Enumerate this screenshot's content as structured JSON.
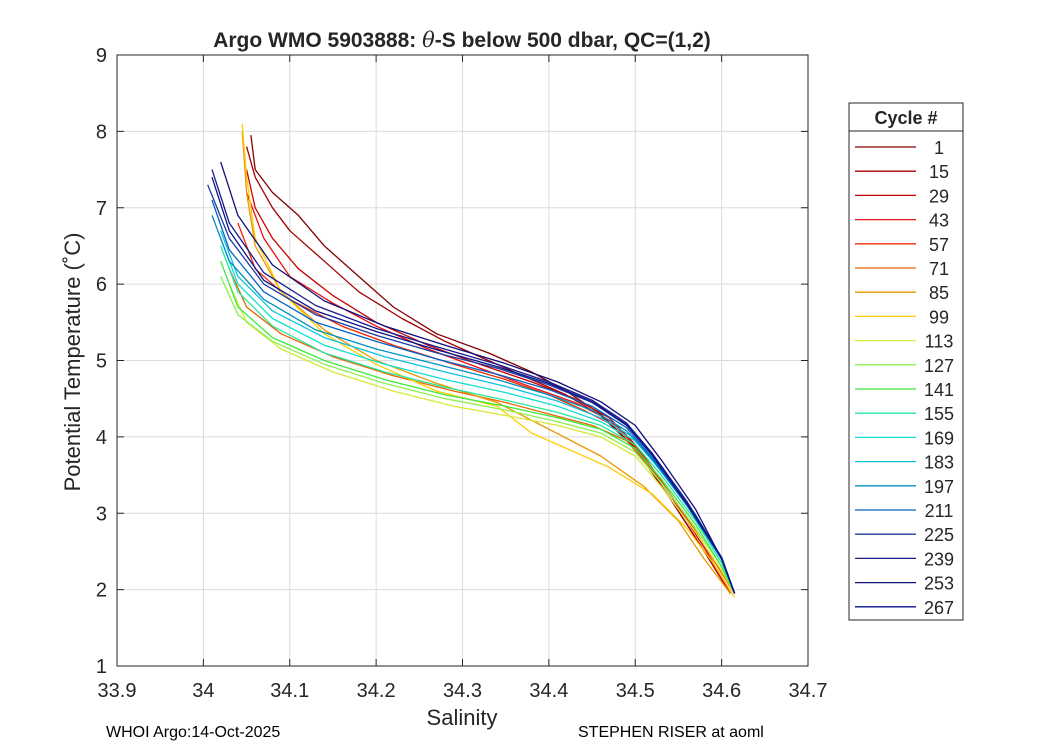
{
  "chart_data": {
    "type": "line",
    "title_prefix": "Argo WMO 5903888: ",
    "title_theta": "θ",
    "title_suffix": "-S below 500 dbar,  QC=(1,2)",
    "xlabel": "Salinity",
    "ylabel": "Potential Temperature (˚C)",
    "xlim": [
      33.9,
      34.7
    ],
    "ylim": [
      1,
      9
    ],
    "xticks": [
      "33.9",
      "34",
      "34.1",
      "34.2",
      "34.3",
      "34.4",
      "34.5",
      "34.6",
      "34.7"
    ],
    "yticks": [
      "1",
      "2",
      "3",
      "4",
      "5",
      "6",
      "7",
      "8",
      "9"
    ],
    "grid": true,
    "legend": {
      "title": "Cycle #",
      "placement": "outside-right",
      "entries": [
        {
          "label": "1",
          "color": "#800000"
        },
        {
          "label": "15",
          "color": "#a20000"
        },
        {
          "label": "29",
          "color": "#c80000"
        },
        {
          "label": "43",
          "color": "#e81010"
        },
        {
          "label": "57",
          "color": "#f02800"
        },
        {
          "label": "71",
          "color": "#e86400"
        },
        {
          "label": "85",
          "color": "#e89600"
        },
        {
          "label": "99",
          "color": "#ffcc00"
        },
        {
          "label": "113",
          "color": "#d8e838"
        },
        {
          "label": "127",
          "color": "#8cf050"
        },
        {
          "label": "141",
          "color": "#40e840"
        },
        {
          "label": "155",
          "color": "#20e8a0"
        },
        {
          "label": "169",
          "color": "#10e0d0"
        },
        {
          "label": "183",
          "color": "#10c0e0"
        },
        {
          "label": "197",
          "color": "#0090c0"
        },
        {
          "label": "211",
          "color": "#0064c8"
        },
        {
          "label": "225",
          "color": "#1e3ca0"
        },
        {
          "label": "239",
          "color": "#1a1a8c"
        },
        {
          "label": "253",
          "color": "#101078"
        },
        {
          "label": "267",
          "color": "#0a1488"
        }
      ]
    },
    "series": [
      {
        "name": "1",
        "color": "#800000",
        "x": [
          34.055,
          34.06,
          34.08,
          34.11,
          34.14,
          34.18,
          34.22,
          34.27,
          34.33,
          34.38,
          34.42,
          34.46,
          34.5,
          34.54,
          34.58,
          34.61
        ],
        "y": [
          7.95,
          7.5,
          7.2,
          6.9,
          6.5,
          6.1,
          5.7,
          5.35,
          5.1,
          4.85,
          4.6,
          4.3,
          3.85,
          3.2,
          2.5,
          1.95
        ]
      },
      {
        "name": "15",
        "color": "#a20000",
        "x": [
          34.05,
          34.06,
          34.08,
          34.1,
          34.14,
          34.18,
          34.23,
          34.28,
          34.33,
          34.38,
          34.42,
          34.46,
          34.5,
          34.54,
          34.58,
          34.61
        ],
        "y": [
          7.8,
          7.4,
          7.0,
          6.7,
          6.3,
          5.9,
          5.55,
          5.25,
          5.0,
          4.75,
          4.55,
          4.28,
          3.85,
          3.2,
          2.5,
          1.95
        ]
      },
      {
        "name": "29",
        "color": "#c80000",
        "x": [
          34.05,
          34.06,
          34.08,
          34.11,
          34.15,
          34.2,
          34.26,
          34.32,
          34.38,
          34.43,
          34.47,
          34.5,
          34.54,
          34.58,
          34.61
        ],
        "y": [
          7.5,
          7.0,
          6.6,
          6.2,
          5.85,
          5.5,
          5.2,
          4.95,
          4.72,
          4.5,
          4.25,
          3.9,
          3.25,
          2.55,
          1.95
        ]
      },
      {
        "name": "43",
        "color": "#e81010",
        "x": [
          34.05,
          34.07,
          34.1,
          34.15,
          34.2,
          34.26,
          34.32,
          34.38,
          34.43,
          34.47,
          34.5,
          34.54,
          34.58,
          34.61
        ],
        "y": [
          7.2,
          6.6,
          6.1,
          5.75,
          5.45,
          5.15,
          4.9,
          4.65,
          4.45,
          4.22,
          3.88,
          3.25,
          2.55,
          1.95
        ]
      },
      {
        "name": "57",
        "color": "#f02800",
        "x": [
          34.04,
          34.06,
          34.1,
          34.16,
          34.22,
          34.29,
          34.35,
          34.4,
          34.44,
          34.48,
          34.51,
          34.55,
          34.59,
          34.615
        ],
        "y": [
          6.8,
          6.2,
          5.8,
          5.45,
          5.2,
          4.95,
          4.75,
          4.55,
          4.35,
          4.12,
          3.75,
          3.1,
          2.4,
          1.95
        ]
      },
      {
        "name": "71",
        "color": "#e86400",
        "x": [
          34.03,
          34.05,
          34.09,
          34.15,
          34.22,
          34.29,
          34.35,
          34.4,
          34.45,
          34.49,
          34.52,
          34.56,
          34.59,
          34.615
        ],
        "y": [
          6.2,
          5.7,
          5.35,
          5.05,
          4.8,
          4.6,
          4.45,
          4.3,
          4.15,
          3.95,
          3.55,
          2.95,
          2.4,
          1.95
        ]
      },
      {
        "name": "85",
        "color": "#e89600",
        "x": [
          34.045,
          34.05,
          34.06,
          34.09,
          34.14,
          34.2,
          34.27,
          34.34,
          34.4,
          34.46,
          34.51,
          34.55,
          34.58,
          34.61
        ],
        "y": [
          8.0,
          7.2,
          6.5,
          5.9,
          5.4,
          5.0,
          4.7,
          4.45,
          4.1,
          3.75,
          3.35,
          2.9,
          2.4,
          1.95
        ]
      },
      {
        "name": "99",
        "color": "#ffcc00",
        "x": [
          34.045,
          34.05,
          34.06,
          34.09,
          34.14,
          34.2,
          34.27,
          34.34,
          34.38,
          34.42,
          34.47,
          34.52,
          34.56,
          34.59,
          34.615
        ],
        "y": [
          8.1,
          7.4,
          6.6,
          5.9,
          5.35,
          4.95,
          4.6,
          4.4,
          4.05,
          3.85,
          3.6,
          3.25,
          2.8,
          2.35,
          1.9
        ]
      },
      {
        "name": "113",
        "color": "#d8e838",
        "x": [
          34.03,
          34.05,
          34.09,
          34.15,
          34.22,
          34.29,
          34.35,
          34.41,
          34.46,
          34.5,
          34.53,
          34.57,
          34.6,
          34.615
        ],
        "y": [
          6.0,
          5.5,
          5.15,
          4.85,
          4.6,
          4.4,
          4.28,
          4.15,
          4.0,
          3.75,
          3.35,
          2.75,
          2.25,
          1.95
        ]
      },
      {
        "name": "127",
        "color": "#8cf050",
        "x": [
          34.02,
          34.04,
          34.08,
          34.14,
          34.21,
          34.28,
          34.35,
          34.41,
          34.46,
          34.5,
          34.53,
          34.57,
          34.6,
          34.615
        ],
        "y": [
          6.1,
          5.6,
          5.25,
          4.95,
          4.7,
          4.5,
          4.35,
          4.2,
          4.05,
          3.8,
          3.4,
          2.8,
          2.3,
          1.95
        ]
      },
      {
        "name": "141",
        "color": "#40e840",
        "x": [
          34.02,
          34.04,
          34.08,
          34.14,
          34.21,
          34.28,
          34.35,
          34.41,
          34.46,
          34.5,
          34.53,
          34.57,
          34.6,
          34.615
        ],
        "y": [
          6.3,
          5.7,
          5.3,
          5.0,
          4.75,
          4.55,
          4.4,
          4.25,
          4.1,
          3.85,
          3.45,
          2.85,
          2.3,
          1.95
        ]
      },
      {
        "name": "155",
        "color": "#20e8a0",
        "x": [
          34.02,
          34.04,
          34.08,
          34.14,
          34.21,
          34.28,
          34.35,
          34.41,
          34.46,
          34.5,
          34.53,
          34.57,
          34.6,
          34.615
        ],
        "y": [
          6.5,
          5.9,
          5.45,
          5.1,
          4.85,
          4.65,
          4.48,
          4.32,
          4.15,
          3.9,
          3.5,
          2.9,
          2.35,
          1.95
        ]
      },
      {
        "name": "169",
        "color": "#10e0d0",
        "x": [
          34.02,
          34.04,
          34.08,
          34.14,
          34.21,
          34.28,
          34.35,
          34.41,
          34.46,
          34.5,
          34.53,
          34.57,
          34.6,
          34.615
        ],
        "y": [
          6.6,
          6.0,
          5.55,
          5.2,
          4.95,
          4.75,
          4.58,
          4.4,
          4.2,
          3.95,
          3.55,
          2.95,
          2.4,
          1.95
        ]
      },
      {
        "name": "183",
        "color": "#10c0e0",
        "x": [
          34.02,
          34.04,
          34.08,
          34.14,
          34.21,
          34.28,
          34.35,
          34.41,
          34.46,
          34.5,
          34.53,
          34.57,
          34.6,
          34.615
        ],
        "y": [
          6.7,
          6.1,
          5.65,
          5.3,
          5.05,
          4.85,
          4.66,
          4.47,
          4.25,
          3.98,
          3.58,
          2.98,
          2.4,
          1.95
        ]
      },
      {
        "name": "197",
        "color": "#0090c0",
        "x": [
          34.01,
          34.03,
          34.07,
          34.13,
          34.2,
          34.27,
          34.34,
          34.4,
          34.45,
          34.49,
          34.52,
          34.56,
          34.6,
          34.615
        ],
        "y": [
          6.9,
          6.3,
          5.8,
          5.4,
          5.15,
          4.95,
          4.75,
          4.55,
          4.35,
          4.08,
          3.7,
          3.1,
          2.4,
          1.95
        ]
      },
      {
        "name": "211",
        "color": "#0064c8",
        "x": [
          34.01,
          34.03,
          34.07,
          34.13,
          34.2,
          34.27,
          34.34,
          34.4,
          34.45,
          34.49,
          34.52,
          34.56,
          34.6,
          34.615
        ],
        "y": [
          7.1,
          6.45,
          5.9,
          5.5,
          5.25,
          5.02,
          4.82,
          4.62,
          4.4,
          4.12,
          3.72,
          3.1,
          2.4,
          1.95
        ]
      },
      {
        "name": "225",
        "color": "#1e3ca0",
        "x": [
          34.005,
          34.03,
          34.07,
          34.13,
          34.2,
          34.27,
          34.34,
          34.4,
          34.45,
          34.49,
          34.52,
          34.56,
          34.6,
          34.615
        ],
        "y": [
          7.3,
          6.6,
          6.0,
          5.6,
          5.33,
          5.1,
          4.9,
          4.68,
          4.45,
          4.15,
          3.75,
          3.12,
          2.42,
          1.95
        ]
      },
      {
        "name": "239",
        "color": "#1a1a8c",
        "x": [
          34.01,
          34.03,
          34.07,
          34.13,
          34.2,
          34.27,
          34.34,
          34.4,
          34.45,
          34.49,
          34.52,
          34.56,
          34.6,
          34.615
        ],
        "y": [
          7.5,
          6.8,
          6.15,
          5.72,
          5.42,
          5.18,
          4.95,
          4.72,
          4.48,
          4.18,
          3.78,
          3.15,
          2.42,
          1.95
        ]
      },
      {
        "name": "253",
        "color": "#101078",
        "x": [
          34.02,
          34.04,
          34.08,
          34.14,
          34.21,
          34.28,
          34.35,
          34.41,
          34.46,
          34.5,
          34.53,
          34.57,
          34.6,
          34.615
        ],
        "y": [
          7.6,
          6.9,
          6.25,
          5.78,
          5.45,
          5.2,
          4.96,
          4.72,
          4.46,
          4.15,
          3.7,
          3.05,
          2.4,
          1.95
        ]
      },
      {
        "name": "267",
        "color": "#0a1488",
        "x": [
          34.01,
          34.03,
          34.07,
          34.13,
          34.2,
          34.27,
          34.34,
          34.4,
          34.45,
          34.49,
          34.52,
          34.56,
          34.6,
          34.615
        ],
        "y": [
          7.4,
          6.7,
          6.05,
          5.65,
          5.38,
          5.14,
          4.92,
          4.7,
          4.46,
          4.16,
          3.76,
          3.12,
          2.42,
          1.95
        ]
      }
    ]
  },
  "footer": {
    "left": "WHOI Argo:14-Oct-2025",
    "right": "STEPHEN RISER at aoml"
  }
}
